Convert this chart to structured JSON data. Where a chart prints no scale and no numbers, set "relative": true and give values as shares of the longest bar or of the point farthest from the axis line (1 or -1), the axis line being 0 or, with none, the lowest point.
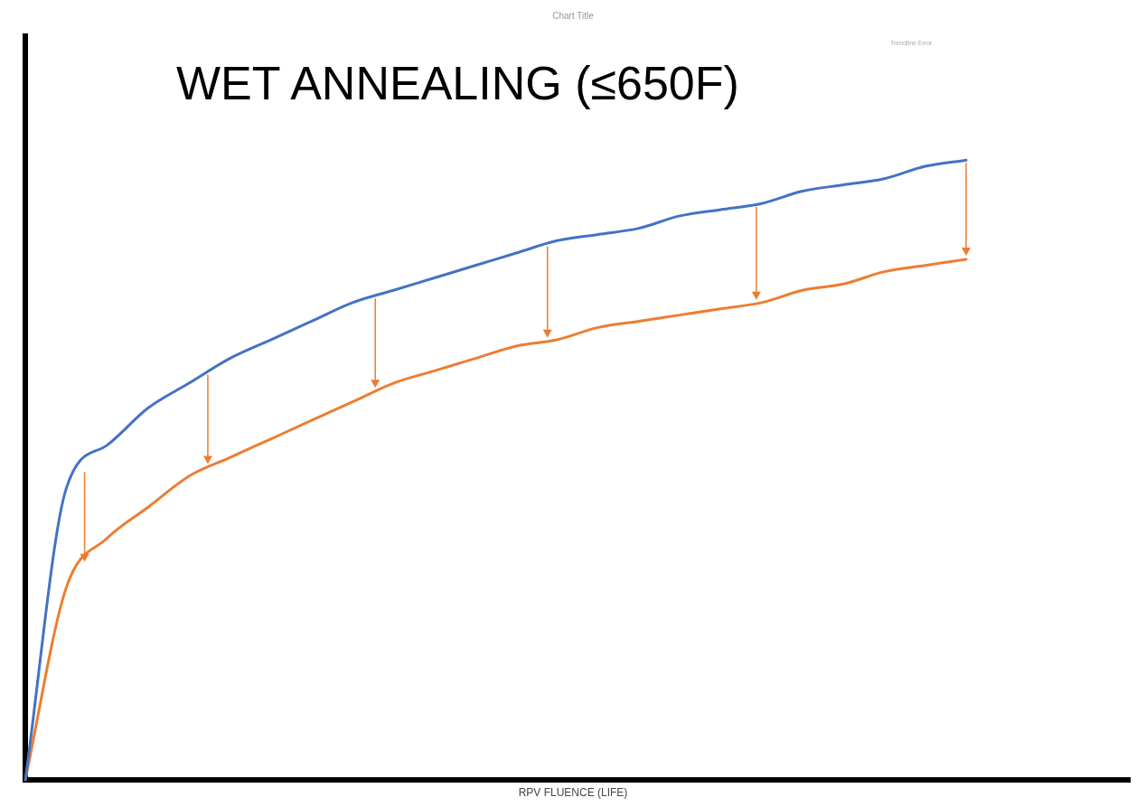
{
  "chart_data": {
    "type": "line",
    "title": "Chart Title",
    "xlabel": "RPV FLUENCE (LIFE)",
    "annotations": [
      "WET ANNEALING (≤650F)",
      "Trendline Error"
    ],
    "relative": true,
    "marker": "none",
    "line_style": "solid",
    "grid": false,
    "legend": false,
    "categories": [
      null,
      null,
      null,
      null,
      null,
      null,
      null,
      null,
      null,
      null,
      null,
      null,
      null,
      null,
      null,
      null,
      null,
      null,
      null,
      null,
      null,
      null,
      null,
      null,
      null,
      null,
      null,
      null
    ],
    "series": [
      {
        "color": "#4472c4",
        "values": [
          0,
          0.47,
          0.54,
          0.6,
          0.64,
          0.68,
          0.71,
          0.74,
          0.77,
          0.79,
          0.81,
          0.83,
          0.85,
          0.87,
          0.88,
          0.89,
          0.91,
          0.92,
          0.93,
          0.95,
          0.96,
          0.97,
          0.99,
          1,
          null,
          null,
          null,
          null
        ]
      },
      {
        "color": "#ed7d31",
        "values": [
          0,
          0.31,
          0.39,
          0.44,
          0.49,
          0.52,
          0.55,
          0.58,
          0.61,
          0.64,
          0.66,
          0.68,
          0.7,
          0.71,
          0.73,
          0.74,
          0.75,
          0.76,
          0.77,
          0.79,
          0.8,
          0.82,
          0.83,
          0.84,
          null,
          null,
          null,
          null
        ]
      }
    ]
  }
}
